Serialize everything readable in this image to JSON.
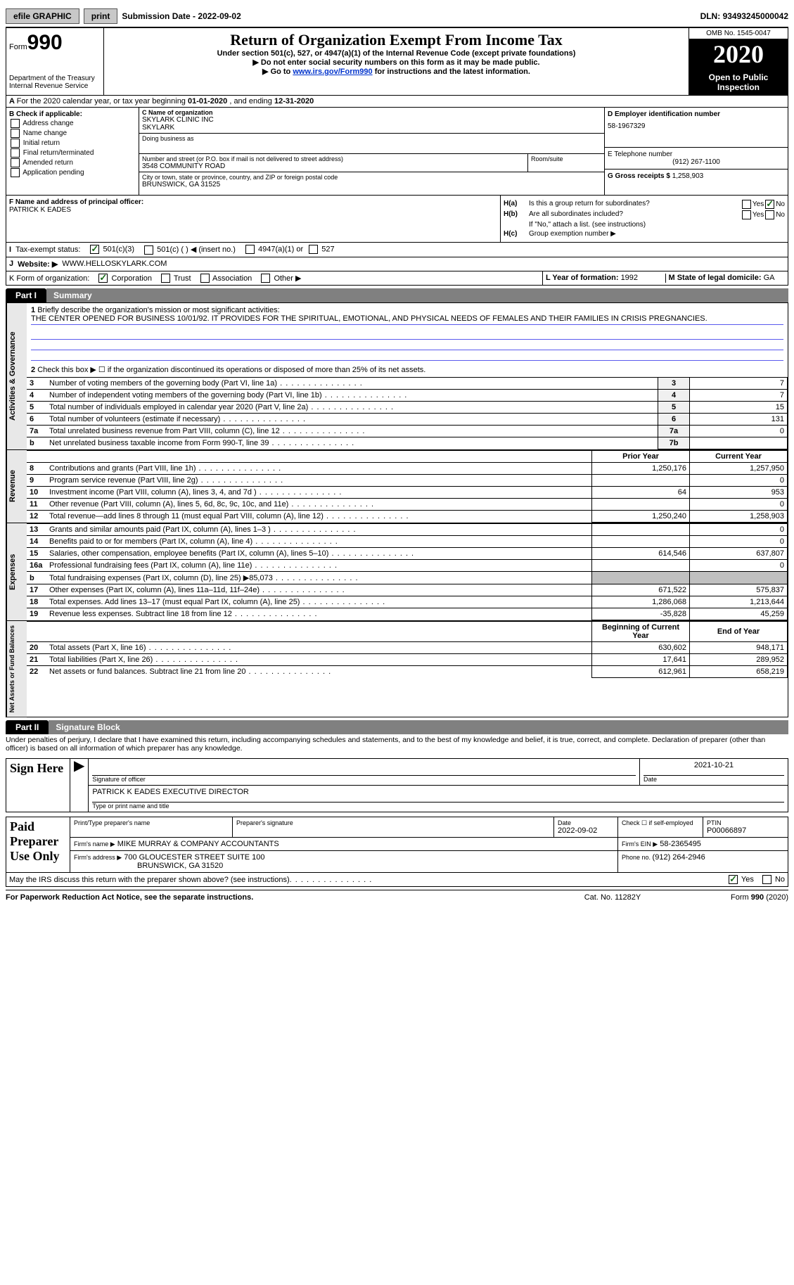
{
  "topbar": {
    "efile": "efile GRAPHIC",
    "print": "print",
    "subdate_label": "Submission Date - ",
    "subdate": "2022-09-02",
    "dln_label": "DLN: ",
    "dln": "93493245000042"
  },
  "header": {
    "form_small": "Form",
    "form_big": "990",
    "dept": "Department of the Treasury\nInternal Revenue Service",
    "title": "Return of Organization Exempt From Income Tax",
    "sub1": "Under section 501(c), 527, or 4947(a)(1) of the Internal Revenue Code (except private foundations)",
    "sub2": "▶ Do not enter social security numbers on this form as it may be made public.",
    "sub3_pre": "▶ Go to ",
    "sub3_link": "www.irs.gov/Form990",
    "sub3_post": " for instructions and the latest information.",
    "omb": "OMB No. 1545-0047",
    "year": "2020",
    "open": "Open to Public Inspection"
  },
  "period": {
    "a": "A",
    "text": "For the 2020 calendar year, or tax year beginning ",
    "begin": "01-01-2020",
    "mid": " , and ending ",
    "end": "12-31-2020"
  },
  "blockB": {
    "label": "B Check if applicable:",
    "opts": [
      "Address change",
      "Name change",
      "Initial return",
      "Final return/terminated",
      "Amended return",
      "Application pending"
    ]
  },
  "blockC": {
    "name_lbl": "C Name of organization",
    "name1": "SKYLARK CLINIC INC",
    "name2": "SKYLARK",
    "dba_lbl": "Doing business as",
    "street_lbl": "Number and street (or P.O. box if mail is not delivered to street address)",
    "street": "3548 COMMUNITY ROAD",
    "room_lbl": "Room/suite",
    "city_lbl": "City or town, state or province, country, and ZIP or foreign postal code",
    "city": "BRUNSWICK, GA  31525"
  },
  "blockD": {
    "ein_lbl": "D Employer identification number",
    "ein": "58-1967329",
    "tel_lbl": "E Telephone number",
    "tel": "(912) 267-1100",
    "gross_lbl": "G Gross receipts $ ",
    "gross": "1,258,903"
  },
  "blockF": {
    "lbl": "F Name and address of principal officer:",
    "name": "PATRICK K EADES"
  },
  "blockH": {
    "ha_lbl": "H(a)",
    "ha_text": "Is this a group return for subordinates?",
    "hb_lbl": "H(b)",
    "hb_text": "Are all subordinates included?",
    "hb_note": "If \"No,\" attach a list. (see instructions)",
    "hc_lbl": "H(c)",
    "hc_text": "Group exemption number ▶",
    "yes": "Yes",
    "no": "No"
  },
  "rowI": {
    "lbl": "I",
    "text": "Tax-exempt status:",
    "o1": "501(c)(3)",
    "o2": "501(c) (  ) ◀ (insert no.)",
    "o3": "4947(a)(1) or",
    "o4": "527"
  },
  "rowJ": {
    "lbl": "J",
    "text": "Website: ▶",
    "val": "WWW.HELLOSKYLARK.COM"
  },
  "rowK": {
    "lbl": "K",
    "text": "Form of organization:",
    "o1": "Corporation",
    "o2": "Trust",
    "o3": "Association",
    "o4": "Other ▶",
    "L_lbl": "L Year of formation: ",
    "L_val": "1992",
    "M_lbl": "M State of legal domicile: ",
    "M_val": "GA"
  },
  "part1": {
    "tab": "Part I",
    "title": "Summary",
    "line1_lbl": "1",
    "line1_text": "Briefly describe the organization's mission or most significant activities:",
    "mission": "THE CENTER OPENED FOR BUSINESS 10/01/92. IT PROVIDES FOR THE SPIRITUAL, EMOTIONAL, AND PHYSICAL NEEDS OF FEMALES AND THEIR FAMILIES IN CRISIS PREGNANCIES.",
    "line2_lbl": "2",
    "line2_text": "Check this box ▶ ☐ if the organization discontinued its operations or disposed of more than 25% of its net assets.",
    "sides": {
      "gov": "Activities & Governance",
      "rev": "Revenue",
      "exp": "Expenses",
      "net": "Net Assets or Fund Balances"
    },
    "gov_rows": [
      {
        "n": "3",
        "t": "Number of voting members of the governing body (Part VI, line 1a)",
        "box": "3",
        "v": "7"
      },
      {
        "n": "4",
        "t": "Number of independent voting members of the governing body (Part VI, line 1b)",
        "box": "4",
        "v": "7"
      },
      {
        "n": "5",
        "t": "Total number of individuals employed in calendar year 2020 (Part V, line 2a)",
        "box": "5",
        "v": "15"
      },
      {
        "n": "6",
        "t": "Total number of volunteers (estimate if necessary)",
        "box": "6",
        "v": "131"
      },
      {
        "n": "7a",
        "t": "Total unrelated business revenue from Part VIII, column (C), line 12",
        "box": "7a",
        "v": "0"
      },
      {
        "n": "b",
        "t": "Net unrelated business taxable income from Form 990-T, line 39",
        "box": "7b",
        "v": ""
      }
    ],
    "hdr_prior": "Prior Year",
    "hdr_curr": "Current Year",
    "rev_rows": [
      {
        "n": "8",
        "t": "Contributions and grants (Part VIII, line 1h)",
        "p": "1,250,176",
        "c": "1,257,950"
      },
      {
        "n": "9",
        "t": "Program service revenue (Part VIII, line 2g)",
        "p": "",
        "c": "0"
      },
      {
        "n": "10",
        "t": "Investment income (Part VIII, column (A), lines 3, 4, and 7d )",
        "p": "64",
        "c": "953"
      },
      {
        "n": "11",
        "t": "Other revenue (Part VIII, column (A), lines 5, 6d, 8c, 9c, 10c, and 11e)",
        "p": "",
        "c": "0"
      },
      {
        "n": "12",
        "t": "Total revenue—add lines 8 through 11 (must equal Part VIII, column (A), line 12)",
        "p": "1,250,240",
        "c": "1,258,903"
      }
    ],
    "exp_rows": [
      {
        "n": "13",
        "t": "Grants and similar amounts paid (Part IX, column (A), lines 1–3 )",
        "p": "",
        "c": "0"
      },
      {
        "n": "14",
        "t": "Benefits paid to or for members (Part IX, column (A), line 4)",
        "p": "",
        "c": "0"
      },
      {
        "n": "15",
        "t": "Salaries, other compensation, employee benefits (Part IX, column (A), lines 5–10)",
        "p": "614,546",
        "c": "637,807"
      },
      {
        "n": "16a",
        "t": "Professional fundraising fees (Part IX, column (A), line 11e)",
        "p": "",
        "c": "0"
      },
      {
        "n": "b",
        "t": "Total fundraising expenses (Part IX, column (D), line 25) ▶85,073",
        "p": "grey",
        "c": "grey"
      },
      {
        "n": "17",
        "t": "Other expenses (Part IX, column (A), lines 11a–11d, 11f–24e)",
        "p": "671,522",
        "c": "575,837"
      },
      {
        "n": "18",
        "t": "Total expenses. Add lines 13–17 (must equal Part IX, column (A), line 25)",
        "p": "1,286,068",
        "c": "1,213,644"
      },
      {
        "n": "19",
        "t": "Revenue less expenses. Subtract line 18 from line 12",
        "p": "-35,828",
        "c": "45,259"
      }
    ],
    "hdr_beg": "Beginning of Current Year",
    "hdr_end": "End of Year",
    "net_rows": [
      {
        "n": "20",
        "t": "Total assets (Part X, line 16)",
        "p": "630,602",
        "c": "948,171"
      },
      {
        "n": "21",
        "t": "Total liabilities (Part X, line 26)",
        "p": "17,641",
        "c": "289,952"
      },
      {
        "n": "22",
        "t": "Net assets or fund balances. Subtract line 21 from line 20",
        "p": "612,961",
        "c": "658,219"
      }
    ]
  },
  "part2": {
    "tab": "Part II",
    "title": "Signature Block",
    "decl": "Under penalties of perjury, I declare that I have examined this return, including accompanying schedules and statements, and to the best of my knowledge and belief, it is true, correct, and complete. Declaration of preparer (other than officer) is based on all information of which preparer has any knowledge.",
    "sign_here": "Sign Here",
    "sig_officer_lbl": "Signature of officer",
    "sig_date_lbl": "Date",
    "sig_date": "2021-10-21",
    "sig_name": "PATRICK K EADES  EXECUTIVE DIRECTOR",
    "sig_name_lbl": "Type or print name and title",
    "paid": "Paid Preparer Use Only",
    "prep_name_lbl": "Print/Type preparer's name",
    "prep_sig_lbl": "Preparer's signature",
    "prep_date_lbl": "Date",
    "prep_date": "2022-09-02",
    "prep_check_lbl": "Check ☐ if self-employed",
    "ptin_lbl": "PTIN",
    "ptin": "P00066897",
    "firm_name_lbl": "Firm's name    ▶",
    "firm_name": "MIKE MURRAY & COMPANY ACCOUNTANTS",
    "firm_ein_lbl": "Firm's EIN ▶",
    "firm_ein": "58-2365495",
    "firm_addr_lbl": "Firm's address ▶",
    "firm_addr1": "700 GLOUCESTER STREET SUITE 100",
    "firm_addr2": "BRUNSWICK, GA  31520",
    "firm_phone_lbl": "Phone no. ",
    "firm_phone": "(912) 264-2946",
    "discuss": "May the IRS discuss this return with the preparer shown above? (see instructions)",
    "yes": "Yes",
    "no": "No"
  },
  "footer": {
    "left": "For Paperwork Reduction Act Notice, see the separate instructions.",
    "mid": "Cat. No. 11282Y",
    "right": "Form 990 (2020)"
  },
  "colors": {
    "link": "#2244cc",
    "line_blue": "#5a5aee",
    "grey_bg": "#c0c0c0"
  }
}
